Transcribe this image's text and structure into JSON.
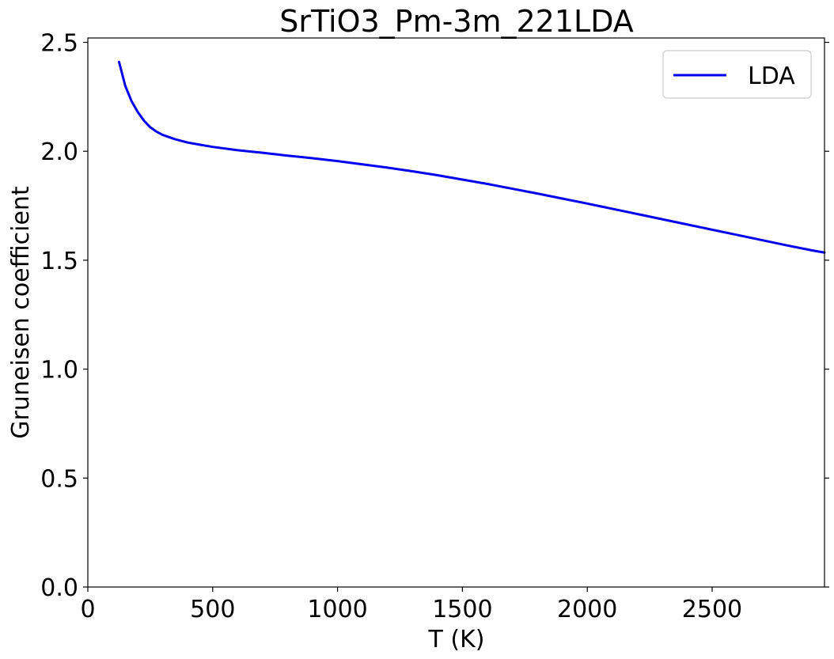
{
  "chart_data": {
    "type": "line",
    "title": "SrTiO3_Pm-3m_221LDA",
    "xlabel": "T (K)",
    "ylabel": "Gruneisen coefficient",
    "xlim": [
      0,
      2950
    ],
    "ylim": [
      0,
      2.52
    ],
    "xticks": [
      0,
      500,
      1000,
      1500,
      2000,
      2500
    ],
    "xtick_labels": [
      "0",
      "500",
      "1000",
      "1500",
      "2000",
      "2500"
    ],
    "yticks": [
      0.0,
      0.5,
      1.0,
      1.5,
      2.0,
      2.5
    ],
    "ytick_labels": [
      "0.0",
      "0.5",
      "1.0",
      "1.5",
      "2.0",
      "2.5"
    ],
    "grid": false,
    "legend_position": "top-right",
    "series": [
      {
        "name": "LDA",
        "color": "#0000ee",
        "x": [
          125,
          150,
          175,
          200,
          225,
          250,
          275,
          300,
          350,
          400,
          500,
          600,
          700,
          800,
          900,
          1000,
          1100,
          1200,
          1300,
          1400,
          1500,
          1600,
          1700,
          1800,
          1900,
          2000,
          2100,
          2200,
          2300,
          2400,
          2500,
          2600,
          2700,
          2800,
          2900,
          2950
        ],
        "y": [
          2.41,
          2.3,
          2.23,
          2.18,
          2.14,
          2.11,
          2.09,
          2.075,
          2.055,
          2.04,
          2.02,
          2.005,
          1.993,
          1.98,
          1.968,
          1.955,
          1.94,
          1.925,
          1.908,
          1.89,
          1.87,
          1.85,
          1.828,
          1.806,
          1.783,
          1.76,
          1.736,
          1.712,
          1.688,
          1.664,
          1.64,
          1.616,
          1.592,
          1.568,
          1.545,
          1.535
        ]
      }
    ]
  }
}
